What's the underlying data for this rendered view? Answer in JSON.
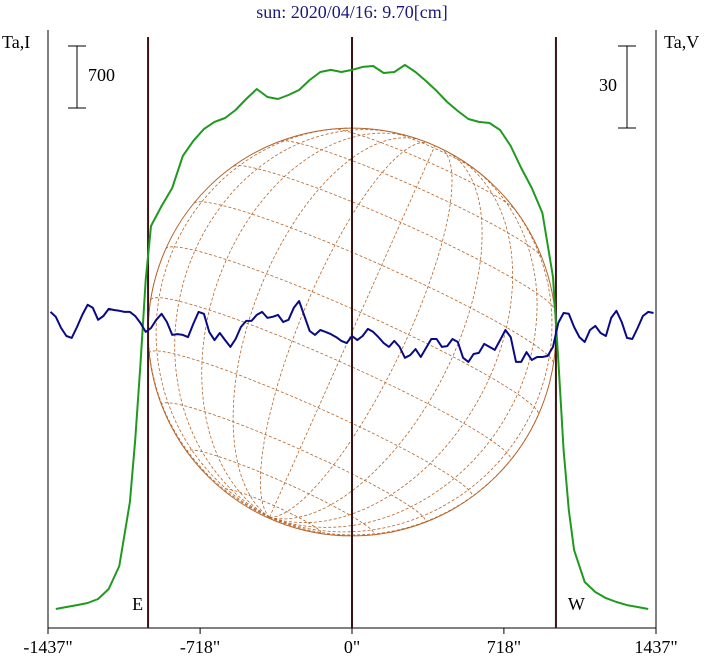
{
  "chart_data": {
    "type": "line",
    "title": "sun: 2020/04/16: 9.70[cm]",
    "ylabel": "Ta,I",
    "y2label": "Ta,V",
    "xlim": [
      -1437,
      1437
    ],
    "xticks": [
      {
        "value": -1437,
        "label": "-1437\""
      },
      {
        "value": -718,
        "label": "-718\""
      },
      {
        "value": 0,
        "label": "0\""
      },
      {
        "value": 718,
        "label": "718\""
      },
      {
        "value": 1437,
        "label": "1437\""
      }
    ],
    "ylim": [
      -203,
      6548
    ],
    "y2lim": [
      -109.1,
      109.8
    ],
    "i_scale_bar": 700,
    "v_scale_bar": 30,
    "vlines": [
      -964,
      0,
      964
    ],
    "vline_color": "#3a1414",
    "disk_radius": 964,
    "disk_color": "#b5652a",
    "limb_labels": [
      "E",
      "W"
    ],
    "series": [
      {
        "color": "#1f9a1f",
        "x": [
          -1400,
          -1350,
          -1300,
          -1250,
          -1200,
          -1150,
          -1100,
          -1050,
          -1025,
          -1000,
          -975,
          -950,
          -900,
          -850,
          -800,
          -750,
          -700,
          -650,
          -600,
          -550,
          -500,
          -450,
          -400,
          -350,
          -300,
          -250,
          -200,
          -150,
          -100,
          -50,
          0,
          50,
          100,
          150,
          200,
          250,
          300,
          350,
          400,
          450,
          500,
          550,
          600,
          650,
          700,
          750,
          800,
          850,
          900,
          950,
          975,
          1000,
          1025,
          1050,
          1100,
          1150,
          1200,
          1250,
          1300,
          1350,
          1400
        ],
        "values": [
          11,
          34,
          56,
          79,
          124,
          237,
          497,
          1219,
          1919,
          2766,
          3726,
          4335,
          4561,
          4764,
          5126,
          5296,
          5430,
          5510,
          5555,
          5645,
          5769,
          5882,
          5792,
          5769,
          5814,
          5871,
          5984,
          6074,
          6097,
          6074,
          6097,
          6131,
          6142,
          6063,
          6074,
          6154,
          6074,
          5972,
          5860,
          5735,
          5634,
          5543,
          5510,
          5498,
          5419,
          5238,
          4990,
          4764,
          4482,
          3760,
          2823,
          1806,
          1129,
          677,
          316,
          203,
          135,
          90,
          56,
          34,
          11
        ]
      },
      {
        "color": "#0a0a85",
        "axis": "y2",
        "x": [
          -1425,
          -1400,
          -1375,
          -1350,
          -1325,
          -1300,
          -1275,
          -1250,
          -1225,
          -1200,
          -1175,
          -1150,
          -1125,
          -1100,
          -1075,
          -1050,
          -1025,
          -1000,
          -975,
          -950,
          -925,
          -900,
          -875,
          -850,
          -825,
          -800,
          -775,
          -750,
          -725,
          -700,
          -675,
          -650,
          -625,
          -600,
          -575,
          -550,
          -525,
          -500,
          -475,
          -450,
          -425,
          -400,
          -375,
          -350,
          -325,
          -300,
          -275,
          -250,
          -225,
          -200,
          -175,
          -150,
          -125,
          -100,
          -75,
          -50,
          -25,
          0,
          25,
          50,
          75,
          100,
          125,
          150,
          175,
          200,
          225,
          250,
          275,
          300,
          325,
          350,
          375,
          400,
          425,
          450,
          475,
          500,
          525,
          550,
          575,
          600,
          625,
          650,
          675,
          700,
          725,
          750,
          775,
          800,
          825,
          850,
          875,
          900,
          925,
          950,
          975,
          1000,
          1025,
          1050,
          1075,
          1100,
          1125,
          1150,
          1175,
          1200,
          1225,
          1250,
          1275,
          1300,
          1325,
          1350,
          1375,
          1400,
          1425
        ],
        "values": [
          6.6,
          4.8,
          0.7,
          -2.2,
          -2.9,
          1.1,
          5.5,
          9.2,
          8.1,
          3.7,
          5.1,
          7.7,
          7.3,
          7.0,
          6.6,
          6.6,
          5.1,
          2.6,
          -0.7,
          0.7,
          3.7,
          5.9,
          2.9,
          -1.8,
          -1.5,
          -1.8,
          -2.6,
          2.2,
          6.6,
          5.9,
          -0.7,
          -3.7,
          -1.1,
          -3.7,
          -6.2,
          -3.3,
          1.1,
          3.3,
          3.3,
          5.5,
          6.6,
          4.4,
          4.8,
          5.5,
          2.9,
          3.7,
          8.1,
          10.6,
          5.1,
          -0.4,
          -1.8,
          0,
          -0.7,
          -1.5,
          -2.6,
          -4.0,
          -4.8,
          -2.2,
          -3.7,
          -2.2,
          0.4,
          -0.7,
          -2.6,
          -4.8,
          -6.2,
          -4.0,
          -6.2,
          -10.2,
          -9.2,
          -7.0,
          -9.9,
          -6.6,
          -3.3,
          -3.3,
          -6.2,
          -5.9,
          -3.3,
          -4.4,
          -10.2,
          -11.7,
          -8.8,
          -8.4,
          -5.1,
          -6.2,
          -7.3,
          -3.7,
          0,
          -2.6,
          -11.7,
          -11.7,
          -8.1,
          -11.0,
          -9.9,
          -9.9,
          -9.5,
          -6.2,
          2.6,
          6.2,
          5.9,
          1.1,
          -2.6,
          -4.4,
          0,
          1.5,
          -1.1,
          -2.2,
          4.4,
          7.0,
          2.9,
          -2.9,
          -3.3,
          0.7,
          5.1,
          6.6,
          6.2
        ]
      }
    ]
  }
}
